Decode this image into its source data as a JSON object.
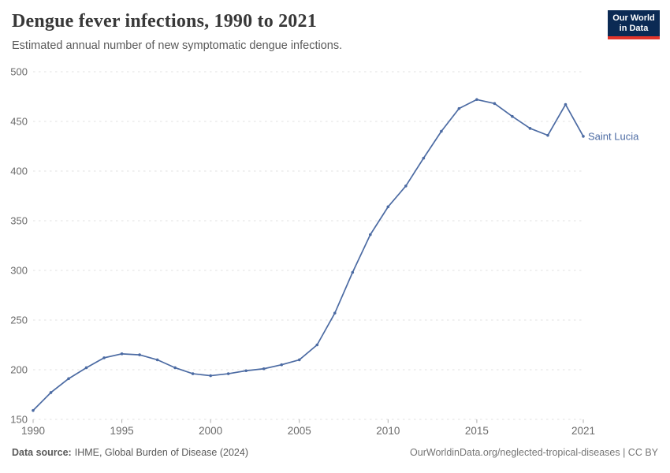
{
  "header": {
    "title": "Dengue fever infections, 1990 to 2021",
    "subtitle": "Estimated annual number of new symptomatic dengue infections.",
    "logo": {
      "line1": "Our World",
      "line2": "in Data",
      "bg": "#0b2a54",
      "accent": "#e2352b"
    }
  },
  "chart_data": {
    "type": "line",
    "title": "Dengue fever infections, 1990 to 2021",
    "subtitle": "Estimated annual number of new symptomatic dengue infections.",
    "xlabel": "",
    "ylabel": "",
    "xlim": [
      1990,
      2021
    ],
    "ylim": [
      150,
      500
    ],
    "x_ticks": [
      1990,
      1995,
      2000,
      2005,
      2010,
      2015,
      2021
    ],
    "y_ticks": [
      150,
      200,
      250,
      300,
      350,
      400,
      450,
      500
    ],
    "grid": "horizontal-dashed",
    "gridline_color": "#e0e0e0",
    "axis_label_color": "#6b6b6b",
    "legend_position": "end-of-line-label",
    "x": [
      1990,
      1991,
      1992,
      1993,
      1994,
      1995,
      1996,
      1997,
      1998,
      1999,
      2000,
      2001,
      2002,
      2003,
      2004,
      2005,
      2006,
      2007,
      2008,
      2009,
      2010,
      2011,
      2012,
      2013,
      2014,
      2015,
      2016,
      2017,
      2018,
      2019,
      2020,
      2021
    ],
    "series": [
      {
        "name": "Saint Lucia",
        "color": "#4c6ba3",
        "values": [
          159,
          177,
          191,
          202,
          212,
          216,
          215,
          210,
          202,
          196,
          194,
          196,
          199,
          201,
          205,
          210,
          225,
          257,
          298,
          336,
          364,
          385,
          413,
          440,
          463,
          472,
          468,
          455,
          443,
          436,
          467,
          435
        ]
      }
    ]
  },
  "footer": {
    "source_label": "Data source:",
    "source_text": "IHME, Global Burden of Disease (2024)",
    "rights_text": "OurWorldinData.org/neglected-tropical-diseases | CC BY"
  }
}
